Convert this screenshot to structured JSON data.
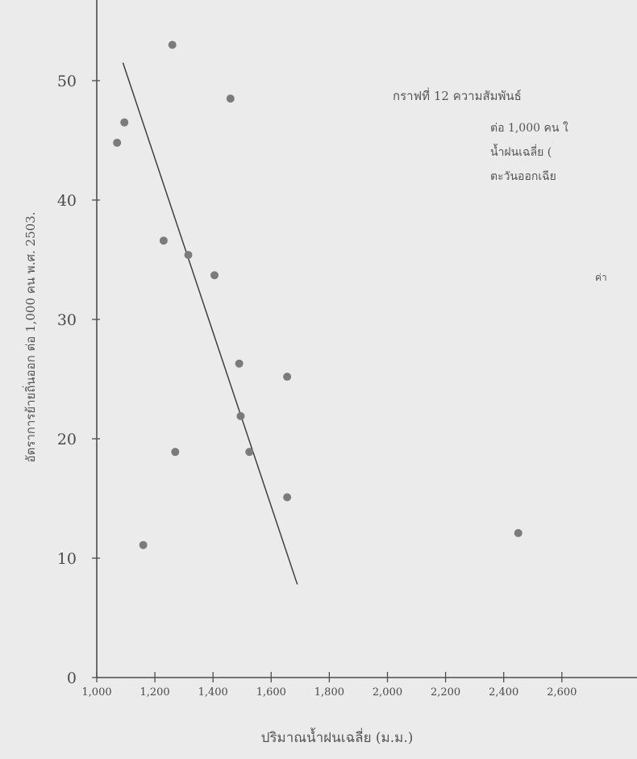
{
  "chart_data": {
    "type": "scatter",
    "title_lines": [
      "กราฟที่ 12  ความสัมพันธ์",
      "ต่อ 1,000 คน ใ",
      "น้ำฝนเฉลี่ย (",
      "ตะวันออกเฉีย"
    ],
    "side_note": "ค่า",
    "xlabel": "ปริมาณน้ำฝนเฉลี่ย (ม.ม.)",
    "ylabel": "อัตราการย้ายถิ่นออก   ต่อ 1,000 คน พ.ศ. 2503.",
    "xlim": [
      1000,
      2700
    ],
    "ylim": [
      0,
      55
    ],
    "x_ticks": [
      1000,
      1200,
      1400,
      1600,
      1800,
      2000,
      2200,
      2400,
      2600
    ],
    "x_tick_labels": [
      "1,000",
      "1,200",
      "1,400",
      "1,600",
      "1,800",
      "2,000",
      "2,200",
      "2,400",
      "2,600"
    ],
    "y_ticks": [
      0,
      10,
      20,
      30,
      40,
      50
    ],
    "y_tick_labels": [
      "0",
      "10",
      "20",
      "30",
      "40",
      "50"
    ],
    "points": [
      {
        "x": 1260,
        "y": 53
      },
      {
        "x": 1460,
        "y": 48.5
      },
      {
        "x": 1095,
        "y": 46.5
      },
      {
        "x": 1070,
        "y": 44.8
      },
      {
        "x": 1230,
        "y": 36.6
      },
      {
        "x": 1315,
        "y": 35.4
      },
      {
        "x": 1405,
        "y": 33.7
      },
      {
        "x": 1490,
        "y": 26.3
      },
      {
        "x": 1655,
        "y": 25.2
      },
      {
        "x": 1495,
        "y": 21.9
      },
      {
        "x": 1270,
        "y": 18.9
      },
      {
        "x": 1525,
        "y": 18.9
      },
      {
        "x": 1655,
        "y": 15.1
      },
      {
        "x": 1160,
        "y": 11.1
      },
      {
        "x": 2450,
        "y": 12.1
      }
    ],
    "trend_line": {
      "x": [
        1090,
        1690
      ],
      "y": [
        51.5,
        7.8
      ]
    },
    "grid": false,
    "legend": "none",
    "colors": {
      "point": "#7b7b7b",
      "line": "#3f3f3f",
      "axis": "#4e4e4e",
      "background": "#ebebeb"
    }
  }
}
